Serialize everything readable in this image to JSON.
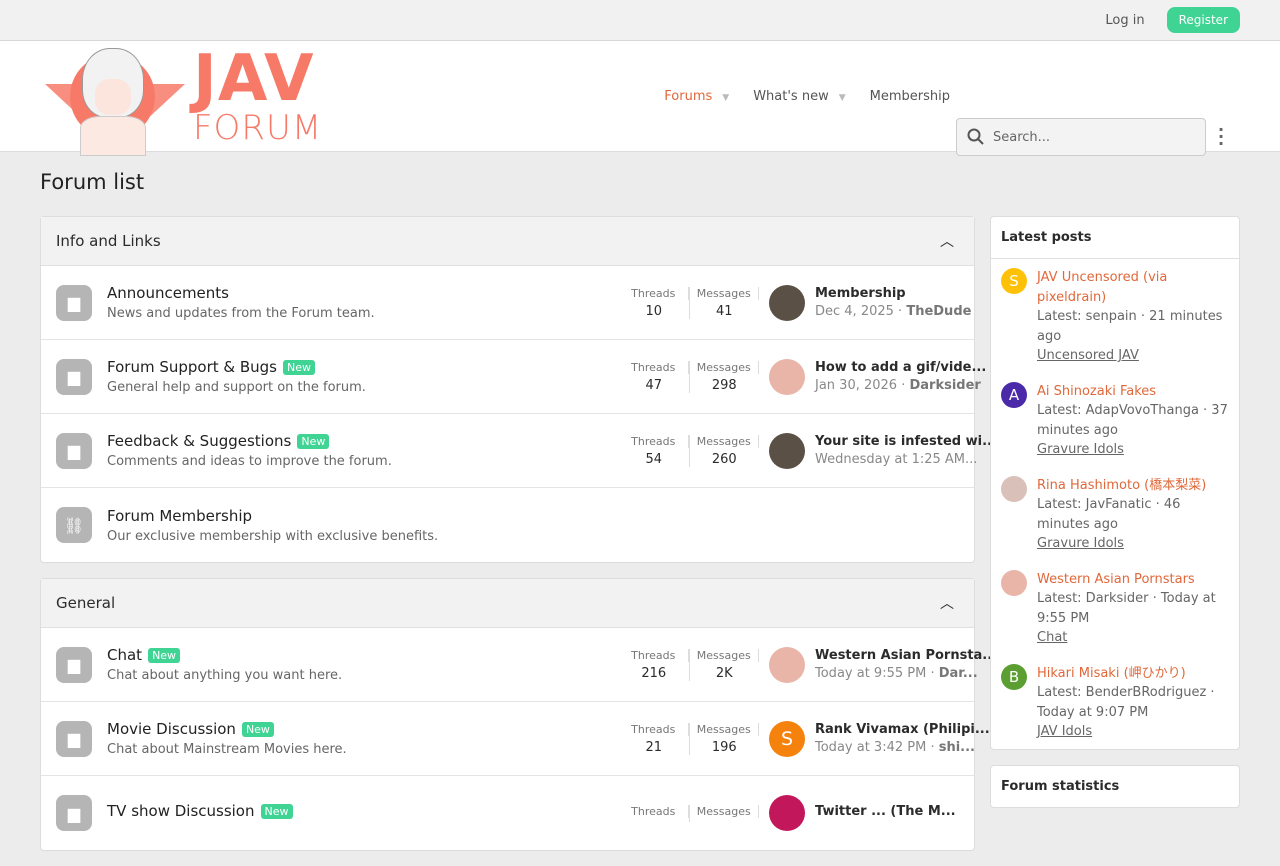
{
  "topbar": {
    "login": "Log in",
    "register": "Register"
  },
  "logo": {
    "line1": "JAV",
    "line2": "FORUM"
  },
  "nav": {
    "items": [
      {
        "label": "Forums",
        "active": true,
        "caret": true
      },
      {
        "label": "What's new",
        "caret": true
      },
      {
        "label": "Membership"
      }
    ],
    "search_placeholder": "Search..."
  },
  "page_title": "Forum list",
  "colors": {
    "accent": "#e0683a",
    "new_badge": "#3fd394",
    "logo": "#f77a69"
  },
  "categories": [
    {
      "title": "Info and Links",
      "nodes": [
        {
          "title": "Announcements",
          "desc": "News and updates from the Forum team.",
          "threads_label": "Threads",
          "threads": "10",
          "messages_label": "Messages",
          "messages": "41",
          "last_title": "Membership",
          "last_date": "Dec 4, 2025",
          "last_user": "TheDude",
          "avatar_color": "#5a5045"
        },
        {
          "title": "Forum Support & Bugs",
          "new": "New",
          "desc": "General help and support on the forum.",
          "threads_label": "Threads",
          "threads": "47",
          "messages_label": "Messages",
          "messages": "298",
          "last_title": "How to add a gif/vide...",
          "last_date": "Jan 30, 2026",
          "last_user": "Darksider",
          "avatar_color": "#e8b5a8"
        },
        {
          "title": "Feedback & Suggestions",
          "new": "New",
          "desc": "Comments and ideas to improve the forum.",
          "threads_label": "Threads",
          "threads": "54",
          "messages_label": "Messages",
          "messages": "260",
          "last_title": "Your site is infested wi...",
          "last_date": "Wednesday at 1:25 AM...",
          "avatar_color": "#5a5045"
        },
        {
          "title": "Forum Membership",
          "desc": "Our exclusive membership with exclusive benefits.",
          "link": true
        }
      ]
    },
    {
      "title": "General",
      "nodes": [
        {
          "title": "Chat",
          "new": "New",
          "desc": "Chat about anything you want here.",
          "threads_label": "Threads",
          "threads": "216",
          "messages_label": "Messages",
          "messages": "2K",
          "last_title": "Western Asian Pornsta...",
          "last_date": "Today at 9:55 PM",
          "last_user": "Dar...",
          "avatar_color": "#e8b5a8"
        },
        {
          "title": "Movie Discussion",
          "new": "New",
          "desc": "Chat about Mainstream Movies here.",
          "threads_label": "Threads",
          "threads": "21",
          "messages_label": "Messages",
          "messages": "196",
          "last_title": "Rank Vivamax (Philipi...",
          "last_date": "Today at 3:42 PM",
          "last_user": "shi...",
          "avatar_letter": "S",
          "avatar_color": "#f5820d"
        },
        {
          "title": "TV show Discussion",
          "new": "New",
          "desc": "",
          "threads_label": "Threads",
          "threads": "",
          "messages_label": "Messages",
          "messages": "",
          "last_title": "Twitter ... (The M...",
          "last_date": "",
          "avatar_color": "#c2185b"
        }
      ]
    }
  ],
  "sidebar": {
    "latest_title": "Latest posts",
    "posts": [
      {
        "title": "JAV Uncensored (via pixeldrain)",
        "meta": "Latest: senpain · 21 minutes ago",
        "forum": "Uncensored JAV",
        "letter": "S",
        "color": "#ffc107"
      },
      {
        "title": "Ai Shinozaki Fakes",
        "meta": "Latest: AdapVovoThanga · 37 minutes ago",
        "forum": "Gravure Idols",
        "letter": "A",
        "color": "#4a2aa8"
      },
      {
        "title": "Rina Hashimoto (橋本梨菜)",
        "meta": "Latest: JavFanatic · 46 minutes ago",
        "forum": "Gravure Idols",
        "color": "#d9c0b8"
      },
      {
        "title": "Western Asian Pornstars",
        "meta": "Latest: Darksider · Today at 9:55 PM",
        "forum": "Chat",
        "color": "#e8b5a8"
      },
      {
        "title": "Hikari Misaki (岬ひかり)",
        "meta": "Latest: BenderBRodriguez · Today at 9:07 PM",
        "forum": "JAV Idols",
        "letter": "B",
        "color": "#5b9e32"
      }
    ],
    "stats_title": "Forum statistics"
  }
}
